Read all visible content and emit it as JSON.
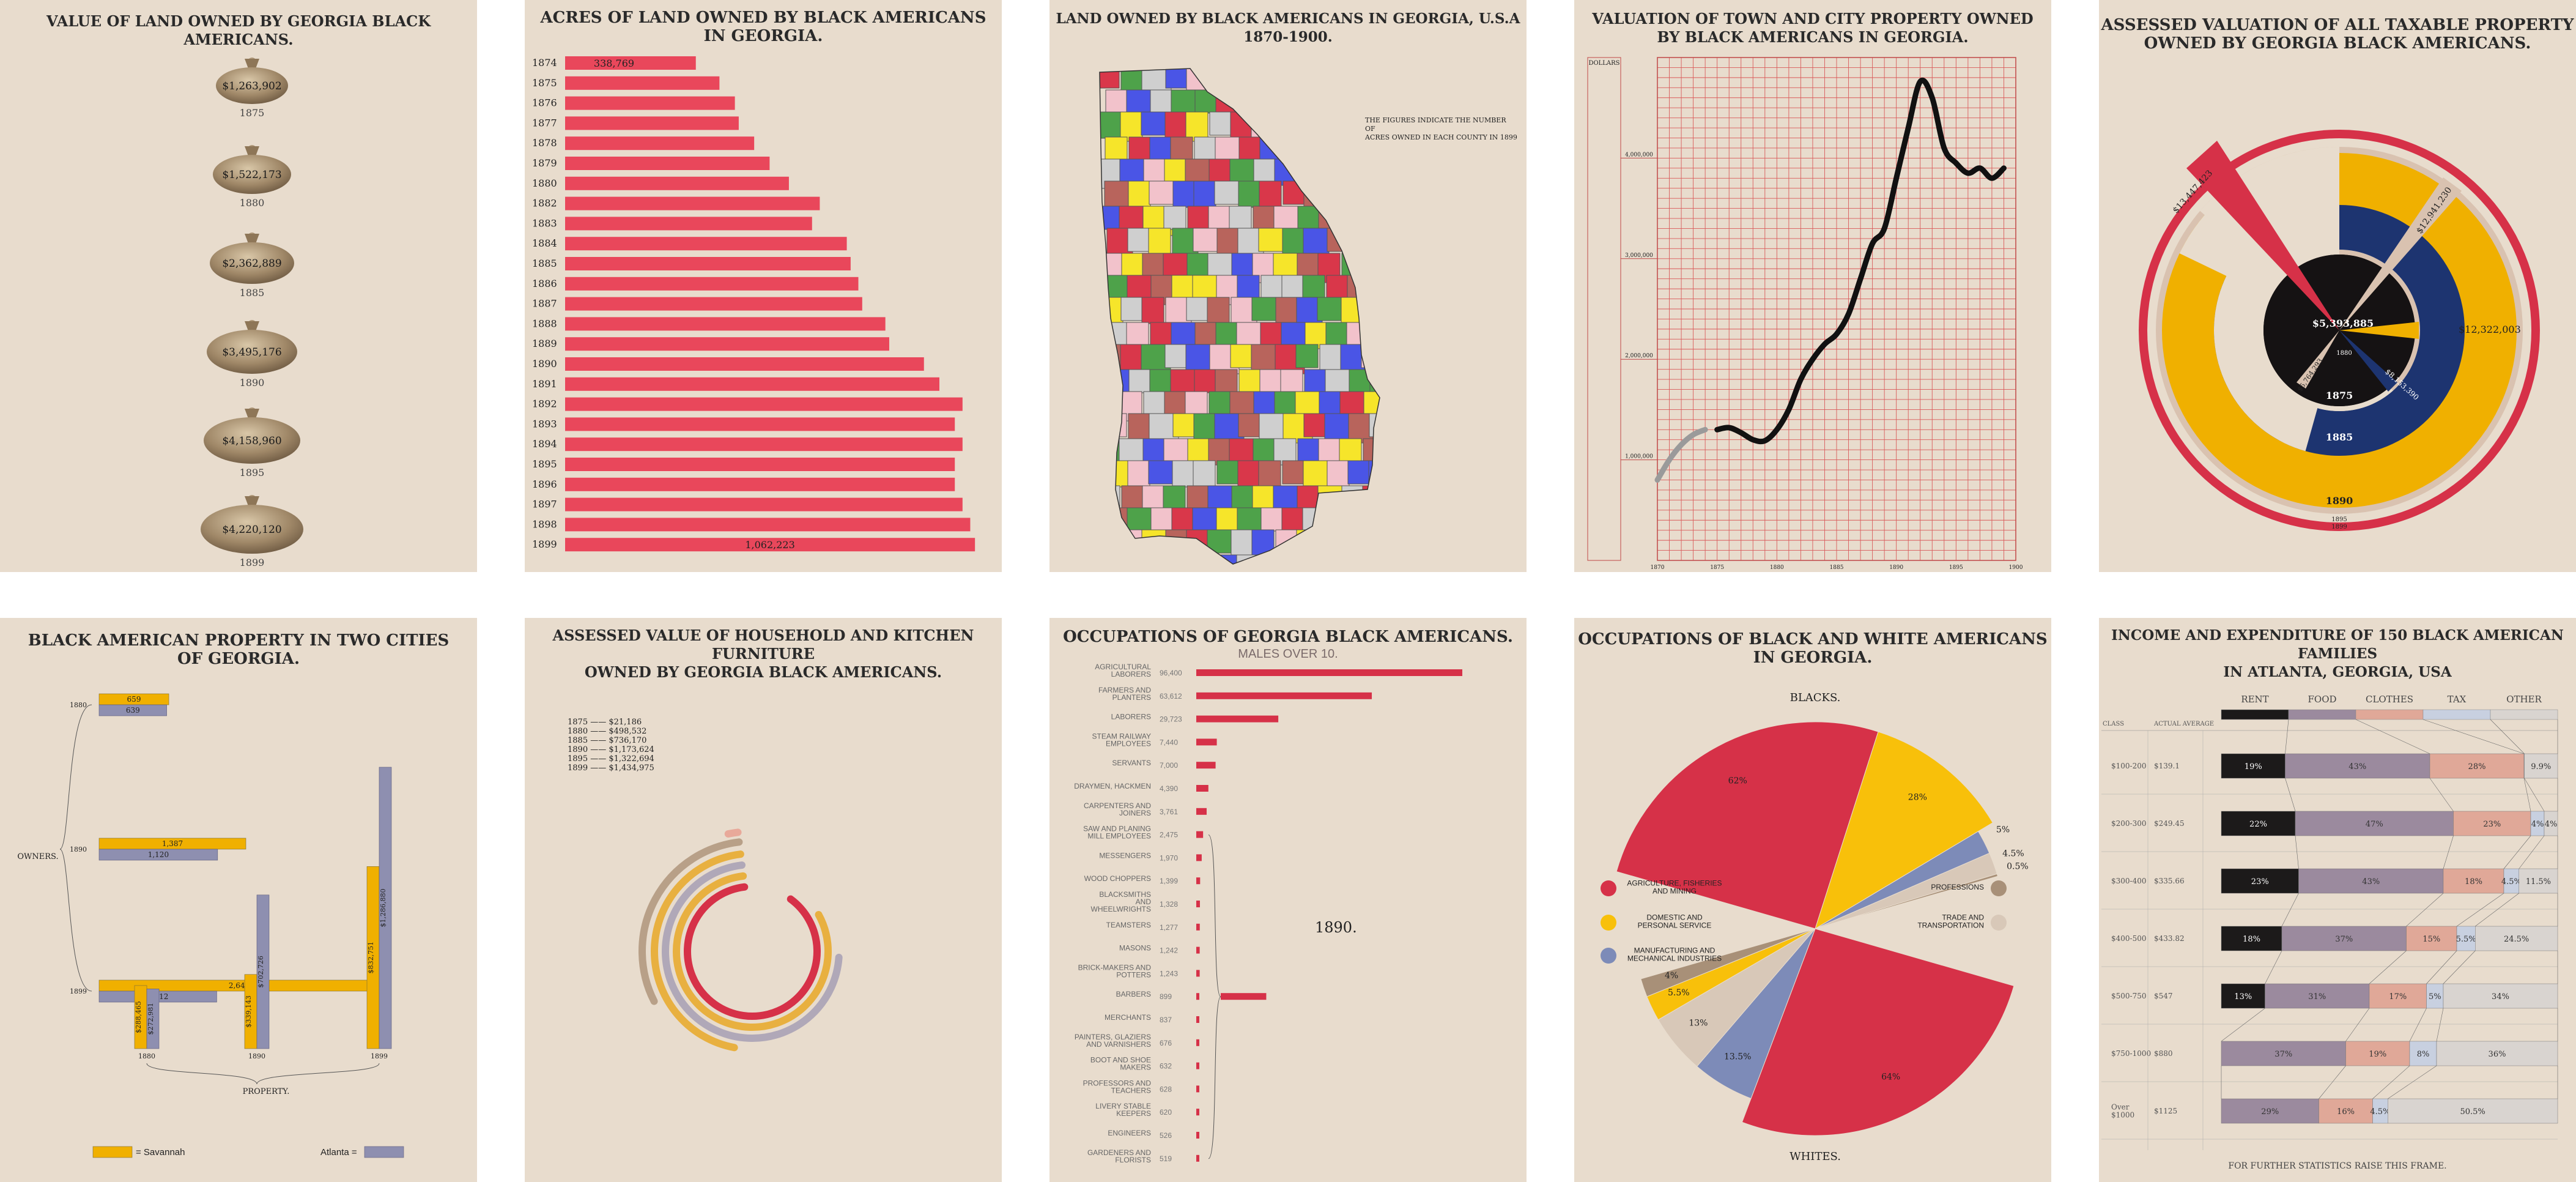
{
  "chart_data": [
    {
      "type": "bar",
      "title": "VALUE OF LAND OWNED BY GEORGIA BLACK AMERICANS.",
      "categories": [
        "1875",
        "1880",
        "1885",
        "1890",
        "1895",
        "1899"
      ],
      "value_labels": [
        "$1,263,902",
        "$1,522,173",
        "$2,362,889",
        "$3,495,176",
        "$4,158,960",
        "$4,220,120"
      ]
    },
    {
      "type": "bar",
      "title": "ACRES OF LAND OWNED BY BLACK AMERICANS\nIN GEORGIA.",
      "categories": [
        "1874",
        "1875",
        "1876",
        "1877",
        "1878",
        "1879",
        "1880",
        "1882",
        "1883",
        "1884",
        "1885",
        "1886",
        "1887",
        "1888",
        "1889",
        "1890",
        "1891",
        "1892",
        "1893",
        "1894",
        "1895",
        "1896",
        "1897",
        "1898",
        "1899"
      ],
      "values": [
        338769,
        400000,
        440000,
        450000,
        490000,
        530000,
        580000,
        660000,
        640000,
        730000,
        740000,
        760000,
        770000,
        830000,
        840000,
        930000,
        970000,
        1030000,
        1010000,
        1030000,
        1010000,
        1010000,
        1030000,
        1050000,
        1062223
      ],
      "value_labels": {
        "1874": "338,769",
        "1899": "1,062,223"
      },
      "xlim": [
        0,
        1100000
      ]
    },
    {
      "type": "other",
      "title": "LAND OWNED BY BLACK AMERICANS IN GEORGIA, U.S.A 1870-1900.",
      "annotation": "THE FIGURES INDICATE THE NUMBER OF\nACRES OWNED IN EACH COUNTY IN 1899",
      "region_colors": [
        "#d9374a",
        "#f6e52a",
        "#4a55e6",
        "#4ea24a",
        "#b8645c",
        "#f2c2cb",
        "#cfcfcf"
      ]
    },
    {
      "type": "line",
      "title": "VALUATION OF TOWN AND CITY PROPERTY OWNED\nBY BLACK AMERICANS IN GEORGIA.",
      "y_axis_title": "DOLLARS",
      "yticks": [
        "1,000,000",
        "2,000,000",
        "3,000,000",
        "4,000,000"
      ],
      "xticks": [
        "1870",
        "1875",
        "1880",
        "1885",
        "1890",
        "1895",
        "1900"
      ],
      "grey_series": {
        "x": [
          1870,
          1871,
          1872,
          1873,
          1874
        ],
        "y": [
          800000,
          1000000,
          1150000,
          1250000,
          1300000
        ]
      },
      "black_series": {
        "x": [
          1875,
          1876,
          1877,
          1878,
          1879,
          1880,
          1881,
          1882,
          1883,
          1884,
          1885,
          1886,
          1887,
          1888,
          1889,
          1890,
          1891,
          1892,
          1893,
          1894,
          1895,
          1896,
          1897,
          1898,
          1899
        ],
        "y": [
          1300000,
          1320000,
          1270000,
          1200000,
          1190000,
          1300000,
          1500000,
          1800000,
          2000000,
          2150000,
          2250000,
          2450000,
          2800000,
          3150000,
          3300000,
          3800000,
          4300000,
          4760000,
          4600000,
          4100000,
          3950000,
          3850000,
          3900000,
          3800000,
          3900000
        ]
      },
      "ylim": [
        0,
        5000000
      ],
      "xlim": [
        1870,
        1900
      ]
    },
    {
      "type": "pie",
      "title": "ASSESSED VALUATION OF ALL TAXABLE PROPERTY\nOWNED BY GEORGIA BLACK AMERICANS.",
      "rings": [
        {
          "year": "1875",
          "value": 5393885,
          "label": "$5,393,885",
          "color": "#151213"
        },
        {
          "year": "1880",
          "value": 5764293,
          "label": "$5,764,293",
          "color": "#d9c2b0"
        },
        {
          "year": "1885",
          "value": 8153390,
          "label": "$8,153,390",
          "color": "#1d3470"
        },
        {
          "year": "1890",
          "value": 12322003,
          "label": "$12,322,003",
          "color": "#f0b000"
        },
        {
          "year": "1895",
          "value": 12941230,
          "label": "$12,941,230",
          "color": "#d9c2b0"
        },
        {
          "year": "1899",
          "value": 13447423,
          "label": "$13,447,423",
          "color": "#d63148"
        }
      ]
    },
    {
      "type": "bar",
      "title": "BLACK AMERICAN PROPERTY IN TWO CITIES\nOF GEORGIA.",
      "rows": [
        "1880",
        "1890",
        "1899"
      ],
      "axis_label_left": "OWNERS.",
      "axis_label_bottom": "PROPERTY.",
      "owners": {
        "Savannah": [
          659,
          1387,
          2647
        ],
        "Atlanta": [
          639,
          1120,
          1112
        ]
      },
      "property": {
        "Savannah": [
          "$288,465",
          "$339,143",
          "$832,751"
        ],
        "Atlanta": [
          "$272,981",
          "$702,726",
          "$1,286,880"
        ]
      },
      "property_values": {
        "Savannah": [
          288465,
          339143,
          832751
        ],
        "Atlanta": [
          272981,
          702726,
          1286880
        ]
      },
      "legend": [
        "= Savannah",
        "Atlanta ="
      ],
      "colors": {
        "Savannah": "#f0b000",
        "Atlanta": "#8e8fb0"
      }
    },
    {
      "type": "other",
      "title": "ASSESSED VALUE OF HOUSEHOLD AND KITCHEN FURNITURE\nOWNED BY GEORGIA BLACK AMERICANS.",
      "entries": [
        {
          "year": "1875",
          "label": "$21,186",
          "value": 21186,
          "color": "#e8a99a"
        },
        {
          "year": "1880",
          "label": "$498,532",
          "value": 498532,
          "color": "#b8a088"
        },
        {
          "year": "1885",
          "label": "$736,170",
          "value": 736170,
          "color": "#e8b040"
        },
        {
          "year": "1890",
          "label": "$1,173,624",
          "value": 1173624,
          "color": "#b0a8b8"
        },
        {
          "year": "1895",
          "label": "$1,322,694",
          "value": 1322694,
          "color": "#e8b040"
        },
        {
          "year": "1899",
          "label": "$1,434,975",
          "value": 1434975,
          "color": "#d63148"
        }
      ]
    },
    {
      "type": "bar",
      "title": "OCCUPATIONS OF GEORGIA BLACK AMERICANS.",
      "subtitle": "MALES OVER 10.",
      "year_label": "1890.",
      "categories": [
        "AGRICULTURAL\nLABORERS",
        "FARMERS AND\nPLANTERS",
        "LABORERS",
        "STEAM RAILWAY\nEMPLOYEES",
        "SERVANTS",
        "DRAYMEN, HACKMEN",
        "CARPENTERS AND\nJOINERS",
        "SAW AND PLANING\nMILL EMPLOYEES",
        "MESSENGERS",
        "WOOD CHOPPERS",
        "BLACKSMITHS\nAND\nWHEELWRIGHTS",
        "TEAMSTERS",
        "MASONS",
        "BRICK-MAKERS AND\nPOTTERS",
        "BARBERS",
        "MERCHANTS",
        "PAINTERS, GLAZIERS\nAND VARNISHERS",
        "BOOT AND SHOE\nMAKERS",
        "PROFESSORS AND\nTEACHERS",
        "LIVERY STABLE\nKEEPERS",
        "ENGINEERS",
        "GARDENERS AND\nFLORISTS"
      ],
      "value_labels": [
        "96,400",
        "63,612",
        "29,723",
        "7,440",
        "7,000",
        "4,390",
        "3,761",
        "2,475",
        "1,970",
        "1,399",
        "1,328",
        "1,277",
        "1,242",
        "1,243",
        "899",
        "837",
        "676",
        "632",
        "628",
        "620",
        "526",
        "519"
      ],
      "values": [
        96400,
        63612,
        29723,
        7440,
        7000,
        4390,
        3761,
        2475,
        1970,
        1399,
        1328,
        1277,
        1242,
        1243,
        899,
        837,
        676,
        632,
        628,
        620,
        526,
        519
      ],
      "other_value": 15000
    },
    {
      "type": "pie",
      "title": "OCCUPATIONS OF BLACK AND WHITE AMERICANS\nIN GEORGIA.",
      "top_label": "BLACKS.",
      "bottom_label": "WHITES.",
      "categories": [
        "AGRICULTURE, FISHERIES\nAND MINING",
        "DOMESTIC AND\nPERSONAL SERVICE",
        "MANUFACTURING AND\nMECHANICAL INDUSTRIES",
        "TRADE AND\nTRANSPORTATION",
        "PROFESSIONS"
      ],
      "colors": [
        "#d63148",
        "#f8c00a",
        "#7d8bb8",
        "#d8c8b8",
        "#a89078"
      ],
      "blacks": [
        62,
        28,
        5,
        4.5,
        0.5
      ],
      "whites": [
        64,
        5.5,
        13.5,
        13,
        4
      ],
      "blacks_labels": [
        "62%",
        "28%",
        "5%",
        "4.5%",
        "0.5%"
      ],
      "whites_labels": [
        "64%",
        "5.5%",
        "13.5%",
        "13%",
        "4%"
      ]
    },
    {
      "type": "bar",
      "title": "INCOME AND EXPENDITURE OF 150 BLACK AMERICAN FAMILIES\nIN ATLANTA, GEORGIA, USA",
      "headers": {
        "class": "CLASS",
        "average": "ACTUAL AVERAGE"
      },
      "columns": [
        "RENT",
        "FOOD",
        "CLOTHES",
        "TAX",
        "OTHER"
      ],
      "colors": [
        "#1c1a1a",
        "#9b8a9e",
        "#e0a898",
        "#c8d0e0",
        "#d9d4d0"
      ],
      "rows": [
        {
          "class": "$100-200",
          "average": "$139.1",
          "values": [
            19,
            43,
            28,
            0.1,
            9.9
          ],
          "labels": [
            "19%",
            "43%",
            "28%",
            "",
            "9.9%"
          ]
        },
        {
          "class": "$200-300",
          "average": "$249.45",
          "values": [
            22,
            47,
            23,
            4,
            4
          ],
          "labels": [
            "22%",
            "47%",
            "23%",
            "4%",
            "4%"
          ]
        },
        {
          "class": "$300-400",
          "average": "$335.66",
          "values": [
            23,
            43,
            18,
            4.5,
            11.5
          ],
          "labels": [
            "23%",
            "43%",
            "18%",
            "4.5%",
            "11.5%"
          ]
        },
        {
          "class": "$400-500",
          "average": "$433.82",
          "values": [
            18,
            37,
            15,
            5.5,
            24.5
          ],
          "labels": [
            "18%",
            "37%",
            "15%",
            "5.5%",
            "24.5%"
          ]
        },
        {
          "class": "$500-750",
          "average": "$547",
          "values": [
            13,
            31,
            17,
            5,
            34
          ],
          "labels": [
            "13%",
            "31%",
            "17%",
            "5%",
            "34%"
          ]
        },
        {
          "class": "$750-1000",
          "average": "$880",
          "values": [
            0,
            37,
            19,
            8,
            36
          ],
          "labels": [
            "",
            "37%",
            "19%",
            "8%",
            "36%"
          ]
        },
        {
          "class": "Over\n$1000",
          "average": "$1125",
          "values": [
            0,
            29,
            16,
            4.5,
            50.5
          ],
          "labels": [
            "",
            "29%",
            "16%",
            "4.5%",
            "50.5%"
          ]
        }
      ],
      "footer": "FOR FURTHER STATISTICS RAISE THIS FRAME."
    }
  ]
}
